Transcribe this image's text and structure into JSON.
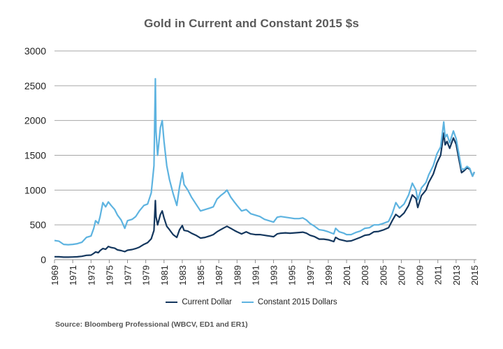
{
  "chart_data": {
    "type": "line",
    "title": "Gold in Current and Constant 2015 $s",
    "xlabel": "",
    "ylabel": "",
    "xlim": [
      1969,
      2015
    ],
    "ylim": [
      0,
      3000
    ],
    "yticks": [
      0,
      500,
      1000,
      1500,
      2000,
      2500,
      3000
    ],
    "xticks": [
      "1969",
      "1971",
      "1973",
      "1975",
      "1977",
      "1979",
      "1981",
      "1983",
      "1985",
      "1987",
      "1989",
      "1991",
      "1993",
      "1995",
      "1997",
      "1999",
      "2001",
      "2003",
      "2005",
      "2007",
      "2009",
      "2011",
      "2013",
      "2015"
    ],
    "grid": true,
    "legend_position": "bottom",
    "series": [
      {
        "name": "Current Dollar",
        "color": "#14375e",
        "points": [
          [
            1969.0,
            42
          ],
          [
            1969.5,
            41
          ],
          [
            1970.0,
            36
          ],
          [
            1970.5,
            36
          ],
          [
            1971.0,
            38
          ],
          [
            1971.5,
            41
          ],
          [
            1972.0,
            48
          ],
          [
            1972.5,
            62
          ],
          [
            1973.0,
            65
          ],
          [
            1973.3,
            90
          ],
          [
            1973.5,
            110
          ],
          [
            1973.8,
            100
          ],
          [
            1974.0,
            130
          ],
          [
            1974.3,
            160
          ],
          [
            1974.6,
            150
          ],
          [
            1974.9,
            190
          ],
          [
            1975.2,
            175
          ],
          [
            1975.6,
            165
          ],
          [
            1975.9,
            140
          ],
          [
            1976.3,
            130
          ],
          [
            1976.7,
            115
          ],
          [
            1977.0,
            135
          ],
          [
            1977.5,
            145
          ],
          [
            1977.9,
            160
          ],
          [
            1978.3,
            180
          ],
          [
            1978.8,
            220
          ],
          [
            1979.2,
            245
          ],
          [
            1979.6,
            300
          ],
          [
            1979.9,
            420
          ],
          [
            1980.05,
            850
          ],
          [
            1980.12,
            620
          ],
          [
            1980.3,
            500
          ],
          [
            1980.6,
            650
          ],
          [
            1980.8,
            700
          ],
          [
            1981.0,
            600
          ],
          [
            1981.3,
            480
          ],
          [
            1981.6,
            430
          ],
          [
            1982.0,
            360
          ],
          [
            1982.4,
            320
          ],
          [
            1982.7,
            430
          ],
          [
            1983.0,
            490
          ],
          [
            1983.2,
            420
          ],
          [
            1983.6,
            410
          ],
          [
            1984.0,
            380
          ],
          [
            1984.5,
            350
          ],
          [
            1985.0,
            310
          ],
          [
            1985.5,
            320
          ],
          [
            1986.0,
            340
          ],
          [
            1986.4,
            360
          ],
          [
            1986.8,
            400
          ],
          [
            1987.2,
            430
          ],
          [
            1987.6,
            460
          ],
          [
            1987.9,
            480
          ],
          [
            1988.3,
            450
          ],
          [
            1988.7,
            420
          ],
          [
            1989.0,
            400
          ],
          [
            1989.5,
            370
          ],
          [
            1990.0,
            400
          ],
          [
            1990.5,
            370
          ],
          [
            1991.0,
            360
          ],
          [
            1991.5,
            360
          ],
          [
            1992.0,
            350
          ],
          [
            1992.5,
            340
          ],
          [
            1993.0,
            330
          ],
          [
            1993.4,
            370
          ],
          [
            1993.8,
            380
          ],
          [
            1994.3,
            385
          ],
          [
            1994.8,
            380
          ],
          [
            1995.3,
            385
          ],
          [
            1995.8,
            390
          ],
          [
            1996.2,
            395
          ],
          [
            1996.6,
            380
          ],
          [
            1997.0,
            350
          ],
          [
            1997.5,
            330
          ],
          [
            1998.0,
            295
          ],
          [
            1998.5,
            295
          ],
          [
            1999.0,
            285
          ],
          [
            1999.6,
            260
          ],
          [
            1999.8,
            320
          ],
          [
            2000.2,
            290
          ],
          [
            2000.7,
            275
          ],
          [
            2001.0,
            265
          ],
          [
            2001.5,
            270
          ],
          [
            2002.0,
            295
          ],
          [
            2002.5,
            320
          ],
          [
            2003.0,
            350
          ],
          [
            2003.5,
            360
          ],
          [
            2004.0,
            400
          ],
          [
            2004.5,
            405
          ],
          [
            2005.0,
            425
          ],
          [
            2005.6,
            460
          ],
          [
            2006.0,
            560
          ],
          [
            2006.4,
            650
          ],
          [
            2006.8,
            610
          ],
          [
            2007.3,
            670
          ],
          [
            2007.8,
            780
          ],
          [
            2008.2,
            930
          ],
          [
            2008.6,
            880
          ],
          [
            2008.8,
            750
          ],
          [
            2009.2,
            920
          ],
          [
            2009.7,
            1000
          ],
          [
            2010.0,
            1110
          ],
          [
            2010.5,
            1230
          ],
          [
            2010.9,
            1390
          ],
          [
            2011.3,
            1500
          ],
          [
            2011.65,
            1820
          ],
          [
            2011.8,
            1650
          ],
          [
            2012.0,
            1700
          ],
          [
            2012.3,
            1600
          ],
          [
            2012.7,
            1750
          ],
          [
            2013.0,
            1660
          ],
          [
            2013.3,
            1450
          ],
          [
            2013.6,
            1250
          ],
          [
            2013.9,
            1280
          ],
          [
            2014.2,
            1320
          ],
          [
            2014.5,
            1300
          ],
          [
            2014.8,
            1200
          ],
          [
            2015.0,
            1260
          ]
        ]
      },
      {
        "name": "Constant 2015 Dollars",
        "color": "#5db3e0",
        "points": [
          [
            1969.0,
            275
          ],
          [
            1969.5,
            265
          ],
          [
            1970.0,
            220
          ],
          [
            1970.5,
            215
          ],
          [
            1971.0,
            220
          ],
          [
            1971.5,
            230
          ],
          [
            1972.0,
            250
          ],
          [
            1972.5,
            320
          ],
          [
            1973.0,
            340
          ],
          [
            1973.3,
            450
          ],
          [
            1973.5,
            560
          ],
          [
            1973.8,
            520
          ],
          [
            1974.0,
            620
          ],
          [
            1974.3,
            820
          ],
          [
            1974.6,
            760
          ],
          [
            1974.9,
            830
          ],
          [
            1975.2,
            780
          ],
          [
            1975.6,
            720
          ],
          [
            1975.9,
            640
          ],
          [
            1976.3,
            570
          ],
          [
            1976.7,
            450
          ],
          [
            1977.0,
            560
          ],
          [
            1977.5,
            580
          ],
          [
            1977.9,
            620
          ],
          [
            1978.3,
            700
          ],
          [
            1978.8,
            780
          ],
          [
            1979.2,
            800
          ],
          [
            1979.6,
            960
          ],
          [
            1979.9,
            1350
          ],
          [
            1980.05,
            2600
          ],
          [
            1980.12,
            1850
          ],
          [
            1980.3,
            1500
          ],
          [
            1980.6,
            1900
          ],
          [
            1980.8,
            2000
          ],
          [
            1981.0,
            1700
          ],
          [
            1981.3,
            1350
          ],
          [
            1981.6,
            1150
          ],
          [
            1982.0,
            950
          ],
          [
            1982.4,
            780
          ],
          [
            1982.7,
            1050
          ],
          [
            1983.0,
            1250
          ],
          [
            1983.2,
            1080
          ],
          [
            1983.6,
            1000
          ],
          [
            1984.0,
            900
          ],
          [
            1984.5,
            800
          ],
          [
            1985.0,
            700
          ],
          [
            1985.5,
            720
          ],
          [
            1986.0,
            740
          ],
          [
            1986.4,
            760
          ],
          [
            1986.8,
            870
          ],
          [
            1987.2,
            920
          ],
          [
            1987.6,
            960
          ],
          [
            1987.9,
            1000
          ],
          [
            1988.3,
            900
          ],
          [
            1988.7,
            830
          ],
          [
            1989.0,
            780
          ],
          [
            1989.5,
            700
          ],
          [
            1990.0,
            720
          ],
          [
            1990.5,
            660
          ],
          [
            1991.0,
            640
          ],
          [
            1991.5,
            620
          ],
          [
            1992.0,
            580
          ],
          [
            1992.5,
            560
          ],
          [
            1993.0,
            540
          ],
          [
            1993.4,
            610
          ],
          [
            1993.8,
            620
          ],
          [
            1994.3,
            610
          ],
          [
            1994.8,
            600
          ],
          [
            1995.3,
            590
          ],
          [
            1995.8,
            590
          ],
          [
            1996.2,
            600
          ],
          [
            1996.6,
            570
          ],
          [
            1997.0,
            520
          ],
          [
            1997.5,
            480
          ],
          [
            1998.0,
            430
          ],
          [
            1998.5,
            420
          ],
          [
            1999.0,
            400
          ],
          [
            1999.6,
            370
          ],
          [
            1999.8,
            450
          ],
          [
            2000.2,
            400
          ],
          [
            2000.7,
            380
          ],
          [
            2001.0,
            360
          ],
          [
            2001.5,
            360
          ],
          [
            2002.0,
            390
          ],
          [
            2002.5,
            410
          ],
          [
            2003.0,
            450
          ],
          [
            2003.5,
            460
          ],
          [
            2004.0,
            500
          ],
          [
            2004.5,
            500
          ],
          [
            2005.0,
            520
          ],
          [
            2005.6,
            550
          ],
          [
            2006.0,
            660
          ],
          [
            2006.4,
            820
          ],
          [
            2006.8,
            740
          ],
          [
            2007.3,
            800
          ],
          [
            2007.8,
            930
          ],
          [
            2008.2,
            1100
          ],
          [
            2008.6,
            1000
          ],
          [
            2008.8,
            860
          ],
          [
            2009.2,
            1030
          ],
          [
            2009.7,
            1110
          ],
          [
            2010.0,
            1220
          ],
          [
            2010.5,
            1350
          ],
          [
            2010.9,
            1520
          ],
          [
            2011.3,
            1620
          ],
          [
            2011.65,
            1980
          ],
          [
            2011.8,
            1760
          ],
          [
            2012.0,
            1800
          ],
          [
            2012.3,
            1680
          ],
          [
            2012.7,
            1850
          ],
          [
            2013.0,
            1740
          ],
          [
            2013.3,
            1520
          ],
          [
            2013.6,
            1300
          ],
          [
            2013.9,
            1300
          ],
          [
            2014.2,
            1340
          ],
          [
            2014.5,
            1310
          ],
          [
            2014.8,
            1200
          ],
          [
            2015.0,
            1260
          ]
        ]
      }
    ]
  },
  "legend": {
    "items": [
      {
        "label": "Current Dollar",
        "color": "#14375e"
      },
      {
        "label": "Constant 2015 Dollars",
        "color": "#5db3e0"
      }
    ]
  },
  "source": "Source: Bloomberg Professional (WBCV, ED1 and ER1)"
}
